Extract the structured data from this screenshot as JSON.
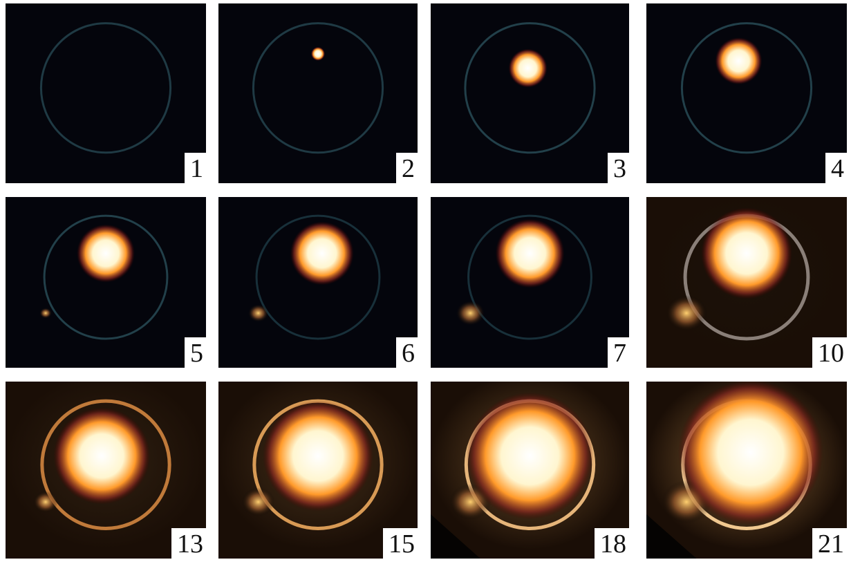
{
  "frames": [
    {
      "label": "1"
    },
    {
      "label": "2"
    },
    {
      "label": "3"
    },
    {
      "label": "4"
    },
    {
      "label": "5"
    },
    {
      "label": "6"
    },
    {
      "label": "7"
    },
    {
      "label": "10"
    },
    {
      "label": "13"
    },
    {
      "label": "15"
    },
    {
      "label": "18"
    },
    {
      "label": "21"
    }
  ]
}
